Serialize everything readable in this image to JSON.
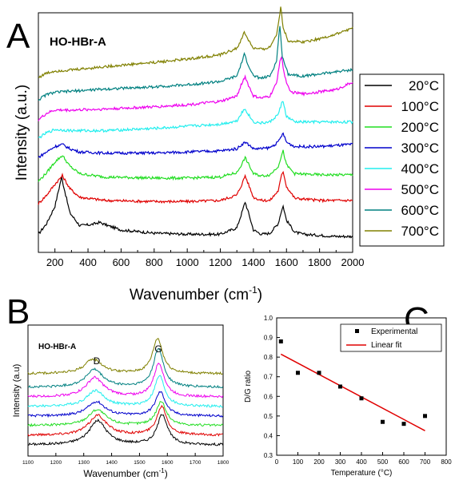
{
  "panels": {
    "a": {
      "letter": "A"
    },
    "b": {
      "letter": "B"
    },
    "c": {
      "letter": "C"
    }
  },
  "chart_data": [
    {
      "id": "A",
      "type": "line",
      "title": "HO-HBr-A",
      "xlabel": "Wavenumber (cm",
      "xlabel_sup": "-1",
      "xlabel_close": ")",
      "ylabel": "Intensity (a.u.)",
      "xlim": [
        100,
        2000
      ],
      "x_ticks": [
        "200",
        "400",
        "600",
        "800",
        "1000",
        "1200",
        "1400",
        "1600",
        "1800",
        "2000"
      ],
      "x_tick_values": [
        200,
        400,
        600,
        800,
        1000,
        1200,
        1400,
        1600,
        1800,
        2000
      ],
      "legend_position": "right",
      "series": [
        {
          "name": "20°C",
          "color": "#000000",
          "x": [
            100,
            150,
            200,
            240,
            290,
            350,
            420,
            470,
            520,
            600,
            800,
            1000,
            1200,
            1300,
            1330,
            1350,
            1370,
            1400,
            1450,
            1500,
            1550,
            1570,
            1580,
            1600,
            1650,
            1700,
            1800,
            1900,
            2000
          ],
          "y": [
            0.02,
            0.12,
            0.28,
            0.55,
            0.22,
            0.1,
            0.11,
            0.13,
            0.1,
            0.06,
            0.03,
            0.02,
            0.02,
            0.08,
            0.22,
            0.32,
            0.22,
            0.06,
            0.02,
            0.03,
            0.12,
            0.24,
            0.28,
            0.15,
            0.04,
            0.02,
            0.01,
            0.0,
            0.0
          ]
        },
        {
          "name": "100°C",
          "color": "#e00000",
          "x": [
            100,
            150,
            200,
            245,
            290,
            350,
            500,
            800,
            1000,
            1200,
            1300,
            1330,
            1350,
            1370,
            1400,
            1450,
            1500,
            1550,
            1570,
            1580,
            1600,
            1650,
            1800,
            2000
          ],
          "y": [
            0.0,
            0.08,
            0.18,
            0.26,
            0.14,
            0.06,
            0.03,
            0.02,
            0.02,
            0.03,
            0.08,
            0.18,
            0.26,
            0.18,
            0.06,
            0.03,
            0.03,
            0.12,
            0.26,
            0.3,
            0.16,
            0.05,
            0.03,
            0.03
          ]
        },
        {
          "name": "200°C",
          "color": "#22dd22",
          "x": [
            100,
            150,
            200,
            245,
            290,
            350,
            500,
            800,
            1000,
            1200,
            1300,
            1330,
            1350,
            1370,
            1400,
            1450,
            1500,
            1550,
            1570,
            1580,
            1600,
            1650,
            1800,
            2000
          ],
          "y": [
            0.0,
            0.08,
            0.18,
            0.24,
            0.14,
            0.07,
            0.04,
            0.03,
            0.03,
            0.04,
            0.08,
            0.16,
            0.22,
            0.16,
            0.07,
            0.05,
            0.06,
            0.14,
            0.24,
            0.28,
            0.15,
            0.07,
            0.06,
            0.06
          ]
        },
        {
          "name": "300°C",
          "color": "#0000cc",
          "x": [
            100,
            150,
            200,
            245,
            290,
            350,
            500,
            800,
            1000,
            1200,
            1300,
            1330,
            1350,
            1370,
            1400,
            1450,
            1500,
            1550,
            1570,
            1580,
            1600,
            1650,
            1800,
            2000
          ],
          "y": [
            0.0,
            0.05,
            0.1,
            0.12,
            0.08,
            0.05,
            0.04,
            0.04,
            0.05,
            0.06,
            0.08,
            0.12,
            0.14,
            0.12,
            0.08,
            0.08,
            0.09,
            0.14,
            0.2,
            0.22,
            0.14,
            0.1,
            0.1,
            0.12
          ]
        },
        {
          "name": "400°C",
          "color": "#22eeee",
          "x": [
            100,
            150,
            200,
            300,
            500,
            800,
            1000,
            1200,
            1300,
            1330,
            1350,
            1370,
            1400,
            1450,
            1500,
            1550,
            1570,
            1580,
            1600,
            1650,
            1800,
            2000
          ],
          "y": [
            0.0,
            0.05,
            0.08,
            0.07,
            0.07,
            0.09,
            0.11,
            0.13,
            0.16,
            0.24,
            0.27,
            0.22,
            0.15,
            0.14,
            0.15,
            0.22,
            0.32,
            0.34,
            0.2,
            0.15,
            0.15,
            0.15
          ]
        },
        {
          "name": "500°C",
          "color": "#ee00ee",
          "x": [
            100,
            150,
            200,
            300,
            500,
            800,
            1000,
            1200,
            1300,
            1330,
            1350,
            1370,
            1400,
            1450,
            1500,
            1540,
            1560,
            1570,
            1590,
            1620,
            1700,
            1800,
            1900,
            2000
          ],
          "y": [
            0.0,
            0.06,
            0.09,
            0.09,
            0.1,
            0.12,
            0.14,
            0.17,
            0.22,
            0.34,
            0.4,
            0.32,
            0.22,
            0.2,
            0.22,
            0.34,
            0.55,
            0.58,
            0.4,
            0.26,
            0.24,
            0.26,
            0.28,
            0.35
          ]
        },
        {
          "name": "600°C",
          "color": "#008080",
          "x": [
            100,
            150,
            200,
            300,
            500,
            800,
            1000,
            1200,
            1300,
            1330,
            1345,
            1365,
            1400,
            1450,
            1500,
            1540,
            1555,
            1560,
            1575,
            1610,
            1700,
            1800,
            1900,
            2000
          ],
          "y": [
            0.0,
            0.05,
            0.07,
            0.08,
            0.1,
            0.12,
            0.14,
            0.17,
            0.22,
            0.35,
            0.42,
            0.34,
            0.22,
            0.2,
            0.22,
            0.36,
            0.62,
            0.68,
            0.4,
            0.24,
            0.22,
            0.24,
            0.26,
            0.28
          ]
        },
        {
          "name": "700°C",
          "color": "#808000",
          "x": [
            100,
            150,
            200,
            300,
            500,
            800,
            1000,
            1200,
            1300,
            1330,
            1345,
            1365,
            1400,
            1450,
            1500,
            1540,
            1560,
            1565,
            1580,
            1610,
            1700,
            1800,
            1900,
            2000
          ],
          "y": [
            0.0,
            0.04,
            0.06,
            0.07,
            0.1,
            0.14,
            0.17,
            0.21,
            0.27,
            0.36,
            0.42,
            0.36,
            0.27,
            0.26,
            0.28,
            0.4,
            0.6,
            0.66,
            0.46,
            0.34,
            0.33,
            0.36,
            0.4,
            0.46
          ]
        }
      ]
    },
    {
      "id": "B",
      "type": "line",
      "title": "HO-HBr-A",
      "xlabel": "Wavenumber (cm",
      "xlabel_sup": "-1",
      "xlabel_close": ")",
      "ylabel": "Intensity (a.u)",
      "xlim": [
        1100,
        1800
      ],
      "x_ticks": [
        "1100",
        "1200",
        "1300",
        "1400",
        "1500",
        "1600",
        "1700",
        "1800"
      ],
      "x_tick_values": [
        1100,
        1200,
        1300,
        1400,
        1500,
        1600,
        1700,
        1800
      ],
      "annotations": [
        {
          "text": "D",
          "x": 1340
        },
        {
          "text": "G",
          "x": 1570
        }
      ],
      "series_colors": [
        "#000000",
        "#e00000",
        "#22dd22",
        "#0000cc",
        "#22eeee",
        "#ee00ee",
        "#008080",
        "#808000"
      ],
      "series_shapes": {
        "d_center": [
          1350,
          1350,
          1348,
          1345,
          1342,
          1340,
          1338,
          1335
        ],
        "g_center": [
          1582,
          1580,
          1578,
          1575,
          1572,
          1570,
          1568,
          1565
        ]
      }
    },
    {
      "id": "C",
      "type": "scatter",
      "xlabel": "Temperature (°C)",
      "ylabel": "D/G ratio",
      "xlim": [
        0,
        800
      ],
      "ylim": [
        0.3,
        1.0
      ],
      "x_ticks": [
        "0",
        "100",
        "200",
        "300",
        "400",
        "500",
        "600",
        "700",
        "800"
      ],
      "x_tick_values": [
        0,
        100,
        200,
        300,
        400,
        500,
        600,
        700,
        800
      ],
      "y_ticks": [
        "0.3",
        "0.4",
        "0.5",
        "0.6",
        "0.7",
        "0.8",
        "0.9",
        "1.0"
      ],
      "y_tick_values": [
        0.3,
        0.4,
        0.5,
        0.6,
        0.7,
        0.8,
        0.9,
        1.0
      ],
      "legend_position": "top-right",
      "series": [
        {
          "name": "Experimental",
          "color": "#000000",
          "x": [
            20,
            100,
            200,
            300,
            400,
            500,
            600,
            700
          ],
          "y": [
            0.88,
            0.72,
            0.72,
            0.65,
            0.59,
            0.47,
            0.46,
            0.5
          ]
        },
        {
          "name": "Linear fit",
          "color": "#e00000",
          "x": [
            20,
            700
          ],
          "y": [
            0.815,
            0.425
          ]
        }
      ]
    }
  ]
}
